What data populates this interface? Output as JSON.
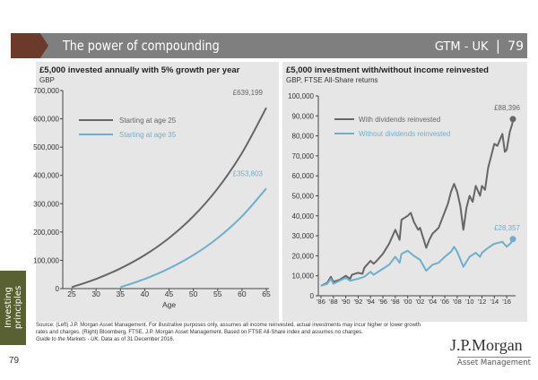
{
  "header": {
    "title": "The power of compounding",
    "section": "GTM - UK",
    "page": "79"
  },
  "sidebar": {
    "label_line1": "Investing",
    "label_line2": "principles",
    "page_number": "79"
  },
  "colors": {
    "header_bg": "#7f7f7f",
    "chevron": "#6b3a2a",
    "sidebar": "#596132",
    "series_dark": "#666666",
    "series_blue": "#6eb0cc",
    "panel_bg": "#e6e6e6"
  },
  "footer": {
    "source_line1": "Source: (Left) J.P. Morgan Asset Management. For illustrative purposes only, assumes all income reinvested, actual investments may incur higher or lower growth",
    "source_line2": "rates and charges. (Right) Bloomberg, FTSE, J.P. Morgan Asset Management. Based on FTSE All-Share index and assumes no charges.",
    "source_line3_italic": "Guide to the Markets - UK.",
    "source_line3": " Data as of 31 December 2016."
  },
  "logo": {
    "name": "J.P.Morgan",
    "sub": "Asset Management"
  },
  "chart_data": [
    {
      "type": "line",
      "title": "£5,000 invested annually with 5% growth per year",
      "subtitle": "GBP",
      "xlabel": "Age",
      "ylabel": "",
      "xlim": [
        25,
        65
      ],
      "ylim": [
        0,
        700000
      ],
      "xticks": [
        "25",
        "30",
        "35",
        "40",
        "45",
        "50",
        "55",
        "60",
        "65"
      ],
      "yticks": [
        "0",
        "100,000",
        "200,000",
        "300,000",
        "400,000",
        "500,000",
        "600,000",
        "700,000"
      ],
      "legend": "top-left",
      "series": [
        {
          "name": "Starting at age 25",
          "color": "#666666",
          "x": [
            25,
            30,
            35,
            40,
            45,
            50,
            55,
            60,
            65
          ],
          "values": [
            5000,
            34010,
            71034,
            118287,
            178596,
            255567,
            353803,
            479182,
            639199
          ],
          "end_label": "£639,199"
        },
        {
          "name": "Starting at age 35",
          "color": "#6eb0cc",
          "x": [
            35,
            40,
            45,
            50,
            55,
            60,
            65
          ],
          "values": [
            5000,
            34010,
            71034,
            118287,
            178596,
            255567,
            353803
          ],
          "end_label": "£353,803"
        }
      ]
    },
    {
      "type": "line",
      "title": "£5,000 investment with/without income reinvested",
      "subtitle": "GBP, FTSE All-Share returns",
      "xlabel": "",
      "ylabel": "",
      "xlim": [
        1986,
        2017
      ],
      "ylim": [
        0,
        100000
      ],
      "xticks": [
        "'86",
        "'88",
        "'90",
        "'92",
        "'94",
        "'96",
        "'98",
        "'00",
        "'02",
        "'04",
        "'06",
        "'08",
        "'10",
        "'12",
        "'14",
        "'16"
      ],
      "yticks": [
        "0",
        "10,000",
        "20,000",
        "30,000",
        "40,000",
        "50,000",
        "60,000",
        "70,000",
        "80,000",
        "90,000",
        "100,000"
      ],
      "legend": "top-left",
      "series": [
        {
          "name": "With dividends reinvested",
          "color": "#666666",
          "end_label": "£88,396",
          "x": [
            1986,
            1987,
            1987.6,
            1988,
            1989,
            1990,
            1990.7,
            1991,
            1992,
            1992.7,
            1993,
            1994,
            1994.5,
            1995,
            1996,
            1997,
            1998,
            1998.7,
            1999,
            2000,
            2000.5,
            2001,
            2001.7,
            2002,
            2002.5,
            2003,
            2003.5,
            2004,
            2005,
            2006,
            2006.5,
            2007,
            2007.5,
            2008,
            2008.5,
            2009,
            2009.5,
            2010,
            2010.5,
            2011,
            2011.7,
            2012,
            2012.5,
            2013,
            2013.5,
            2014,
            2014.5,
            2015.3,
            2015.7,
            2016,
            2016.5,
            2016.9,
            2017
          ],
          "values": [
            5000,
            6500,
            9500,
            7000,
            8000,
            10000,
            8500,
            10500,
            11500,
            11000,
            14000,
            17500,
            16000,
            17500,
            21000,
            26000,
            33000,
            28000,
            38000,
            40000,
            41500,
            37000,
            33000,
            34000,
            29000,
            24000,
            28000,
            31000,
            34000,
            42000,
            46000,
            52000,
            56000,
            52000,
            45000,
            33000,
            44000,
            50000,
            47000,
            55000,
            50000,
            55000,
            53000,
            64000,
            70000,
            76000,
            75000,
            81000,
            72000,
            73000,
            82000,
            86000,
            88396
          ]
        },
        {
          "name": "Without dividends reinvested",
          "color": "#6eb0cc",
          "end_label": "£28,357",
          "x": [
            1986,
            1987,
            1987.6,
            1988,
            1990,
            1990.7,
            1992,
            1993,
            1994,
            1994.5,
            1996,
            1997,
            1998,
            1998.7,
            1999,
            2000,
            2001,
            2002,
            2003,
            2004,
            2005,
            2006,
            2007,
            2007.5,
            2008,
            2009,
            2010,
            2011,
            2011.7,
            2012,
            2013,
            2014,
            2015.3,
            2016,
            2016.7,
            2017
          ],
          "values": [
            5000,
            6000,
            8500,
            6000,
            9000,
            7500,
            8500,
            9500,
            12000,
            10500,
            13500,
            15500,
            19500,
            16500,
            21000,
            22500,
            20000,
            18000,
            12500,
            15500,
            16500,
            19500,
            22000,
            24500,
            22000,
            14500,
            19500,
            21500,
            19500,
            21500,
            24000,
            26000,
            27000,
            24500,
            26500,
            28357
          ]
        }
      ]
    }
  ]
}
